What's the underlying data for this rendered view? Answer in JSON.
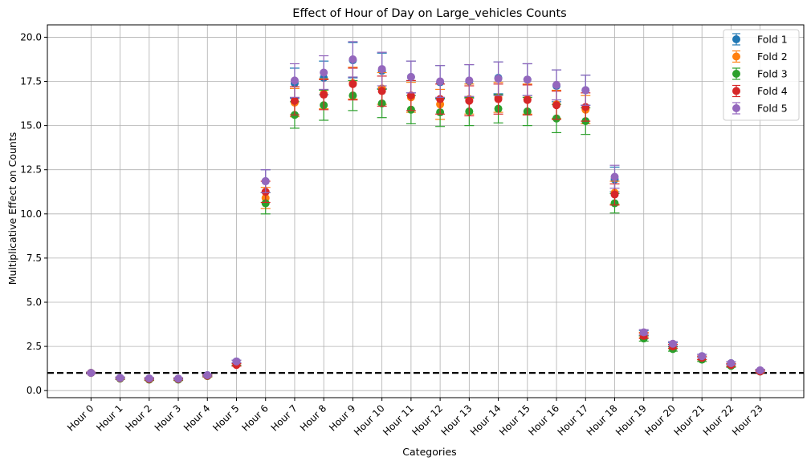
{
  "chart_data": {
    "type": "scatter",
    "title": "Effect of Hour of Day on Large_vehicles Counts",
    "xlabel": "Categories",
    "ylabel": "Multiplicative Effect on Counts",
    "ylim": [
      -0.4,
      20.7
    ],
    "yticks": [
      0.0,
      2.5,
      5.0,
      7.5,
      10.0,
      12.5,
      15.0,
      17.5,
      20.0
    ],
    "ytick_labels": [
      "0.0",
      "2.5",
      "5.0",
      "7.5",
      "10.0",
      "12.5",
      "15.0",
      "17.5",
      "20.0"
    ],
    "grid": true,
    "legend_position": "top-right",
    "reference_line": {
      "y": 1.0,
      "style": "dashed",
      "color": "#000000"
    },
    "categories": [
      "Hour 0",
      "Hour 1",
      "Hour 2",
      "Hour 3",
      "Hour 4",
      "Hour 5",
      "Hour 6",
      "Hour 7",
      "Hour 8",
      "Hour 9",
      "Hour 10",
      "Hour 11",
      "Hour 12",
      "Hour 13",
      "Hour 14",
      "Hour 15",
      "Hour 16",
      "Hour 17",
      "Hour 18",
      "Hour 19",
      "Hour 20",
      "Hour 21",
      "Hour 22",
      "Hour 23"
    ],
    "series": [
      {
        "name": "Fold 1",
        "color": "#1f77b4",
        "values": [
          1.0,
          0.72,
          0.68,
          0.67,
          0.87,
          1.65,
          11.85,
          17.4,
          17.7,
          18.7,
          18.1,
          17.75,
          17.45,
          17.5,
          17.7,
          17.6,
          17.25,
          17.0,
          11.95,
          3.25,
          2.6,
          1.95,
          1.55,
          1.12
        ],
        "errors": [
          0.04,
          0.05,
          0.05,
          0.05,
          0.05,
          0.07,
          0.65,
          0.85,
          0.95,
          1.0,
          1.0,
          0.9,
          0.95,
          0.95,
          0.9,
          0.9,
          0.9,
          0.85,
          0.7,
          0.15,
          0.12,
          0.1,
          0.08,
          0.06
        ]
      },
      {
        "name": "Fold 2",
        "color": "#ff7f0e",
        "values": [
          1.0,
          0.7,
          0.63,
          0.64,
          0.83,
          1.5,
          10.9,
          16.3,
          16.8,
          17.4,
          17.1,
          16.6,
          16.2,
          16.5,
          16.6,
          16.5,
          16.2,
          15.9,
          11.2,
          3.15,
          2.5,
          1.85,
          1.45,
          1.1
        ],
        "errors": [
          0.04,
          0.05,
          0.05,
          0.05,
          0.05,
          0.07,
          0.6,
          0.8,
          0.85,
          0.9,
          0.9,
          0.85,
          0.85,
          0.85,
          0.85,
          0.85,
          0.8,
          0.8,
          0.65,
          0.15,
          0.12,
          0.1,
          0.08,
          0.06
        ]
      },
      {
        "name": "Fold 3",
        "color": "#2ca02c",
        "values": [
          1.0,
          0.68,
          0.62,
          0.62,
          0.82,
          1.5,
          10.6,
          15.6,
          16.15,
          16.7,
          16.25,
          15.9,
          15.75,
          15.8,
          15.95,
          15.8,
          15.4,
          15.25,
          10.6,
          2.95,
          2.35,
          1.75,
          1.4,
          1.08
        ],
        "errors": [
          0.04,
          0.05,
          0.05,
          0.05,
          0.05,
          0.07,
          0.6,
          0.75,
          0.85,
          0.85,
          0.8,
          0.8,
          0.8,
          0.8,
          0.8,
          0.8,
          0.8,
          0.75,
          0.55,
          0.15,
          0.12,
          0.1,
          0.08,
          0.06
        ]
      },
      {
        "name": "Fold 4",
        "color": "#d62728",
        "values": [
          1.0,
          0.7,
          0.65,
          0.65,
          0.84,
          1.45,
          11.25,
          16.4,
          16.75,
          17.35,
          16.95,
          16.7,
          16.5,
          16.4,
          16.5,
          16.45,
          16.15,
          16.05,
          11.1,
          3.1,
          2.5,
          1.85,
          1.45,
          1.08
        ],
        "errors": [
          0.04,
          0.05,
          0.05,
          0.05,
          0.05,
          0.07,
          0.6,
          0.8,
          0.85,
          0.9,
          0.85,
          0.85,
          0.85,
          0.85,
          0.85,
          0.85,
          0.8,
          0.8,
          0.6,
          0.15,
          0.12,
          0.1,
          0.08,
          0.06
        ]
      },
      {
        "name": "Fold 5",
        "color": "#9467bd",
        "values": [
          1.0,
          0.72,
          0.69,
          0.68,
          0.87,
          1.65,
          11.85,
          17.55,
          18.0,
          18.75,
          18.2,
          17.75,
          17.5,
          17.55,
          17.65,
          17.6,
          17.3,
          17.0,
          12.1,
          3.3,
          2.65,
          1.95,
          1.55,
          1.15
        ],
        "errors": [
          0.04,
          0.05,
          0.05,
          0.05,
          0.05,
          0.07,
          0.65,
          0.95,
          0.95,
          1.0,
          0.95,
          0.9,
          0.9,
          0.9,
          0.95,
          0.9,
          0.85,
          0.85,
          0.65,
          0.15,
          0.12,
          0.1,
          0.08,
          0.06
        ]
      }
    ]
  }
}
